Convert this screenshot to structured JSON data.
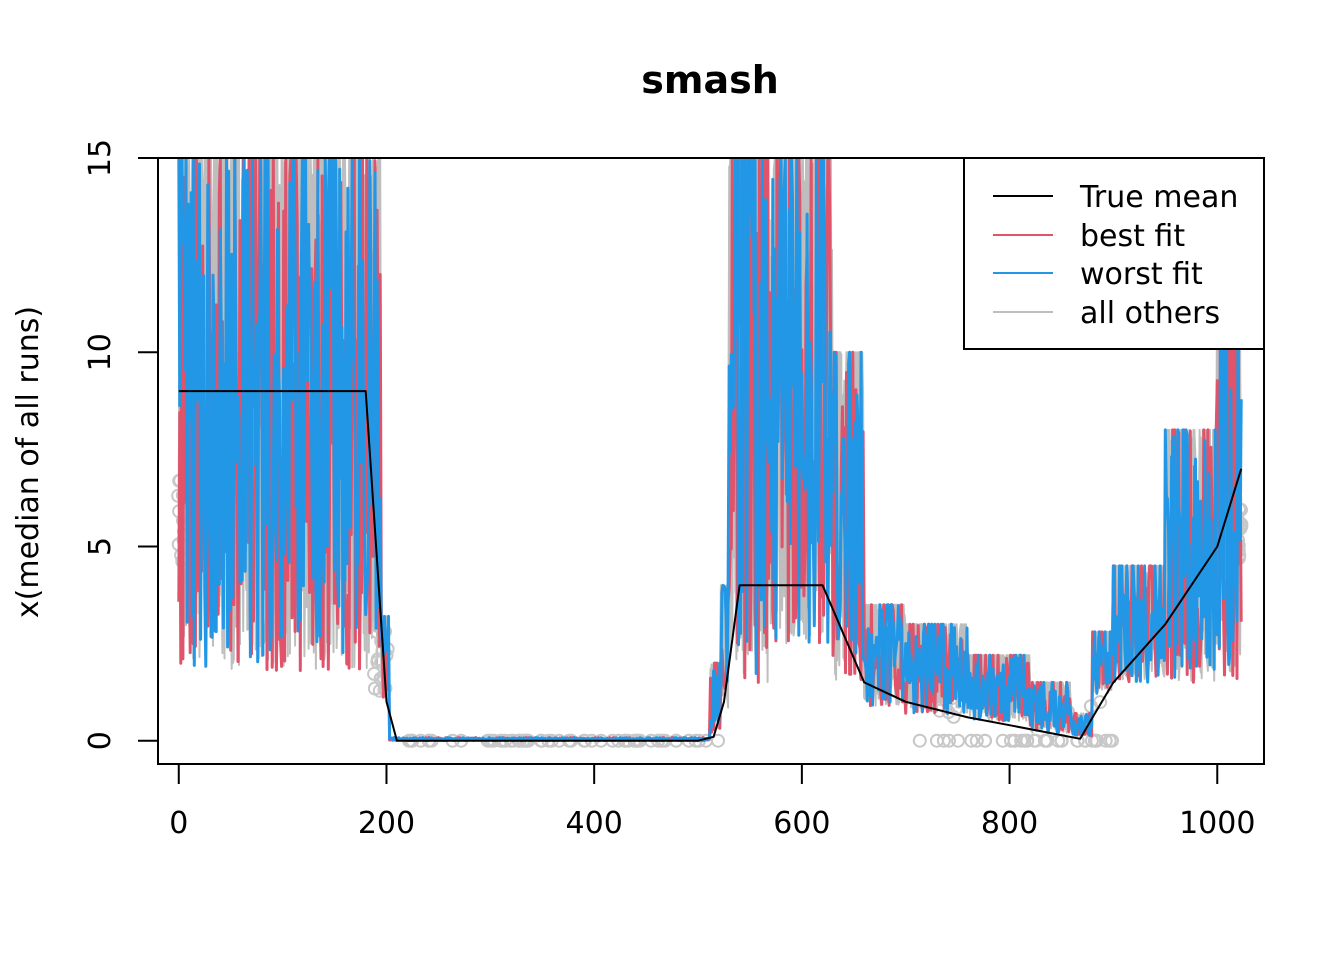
{
  "chart_data": {
    "type": "line",
    "title": "smash",
    "xlabel": "",
    "ylabel": "x(median of all runs)",
    "xlim": [
      -20,
      1045
    ],
    "ylim": [
      -0.6,
      15
    ],
    "x_ticks": [
      0,
      200,
      400,
      600,
      800,
      1000
    ],
    "y_ticks": [
      0,
      5,
      10,
      15
    ],
    "x_tick_labels": [
      "0",
      "200",
      "400",
      "600",
      "800",
      "1000"
    ],
    "y_tick_labels": [
      "0",
      "5",
      "10",
      "15"
    ],
    "legend_position": "top-right",
    "colors": {
      "true_mean": "#000000",
      "best_fit": "#DF536B",
      "worst_fit": "#2297E6",
      "all_others": "#BEBEBE"
    },
    "series": [
      {
        "name": "True mean",
        "color": "#000000",
        "x": [
          0,
          180,
          200,
          210,
          500,
          515,
          525,
          540,
          620,
          660,
          700,
          760,
          800,
          868,
          880,
          900,
          950,
          1000,
          1023
        ],
        "values": [
          9,
          9,
          1,
          0,
          0,
          0.1,
          1,
          4,
          4,
          1.5,
          1,
          0.6,
          0.4,
          0.05,
          0.6,
          1.5,
          3,
          5,
          7
        ]
      },
      {
        "name": "best fit",
        "color": "#DF536B",
        "summary": "noisy estimate: high (2-15) on 0-200, near 0 on 205-515, high (2-15) on 520-660, low (0.5-3) on 660-880, rising (1.5-12) on 880-1023",
        "x": [],
        "values": []
      },
      {
        "name": "worst fit",
        "color": "#2297E6",
        "summary": "noisy estimate: high (2-15) on 0-200, near 0 on 205-515, high (2-15) on 520-660, low (0.3-5) on 660-880, rising (1.5-13) on 880-1023",
        "x": [],
        "values": []
      },
      {
        "name": "all others",
        "color": "#BEBEBE",
        "summary": "envelope of remaining runs, widest band around the noisy regions",
        "x": [],
        "values": []
      }
    ],
    "legend": [
      "True mean",
      "best fit",
      "worst fit",
      "all others"
    ]
  }
}
